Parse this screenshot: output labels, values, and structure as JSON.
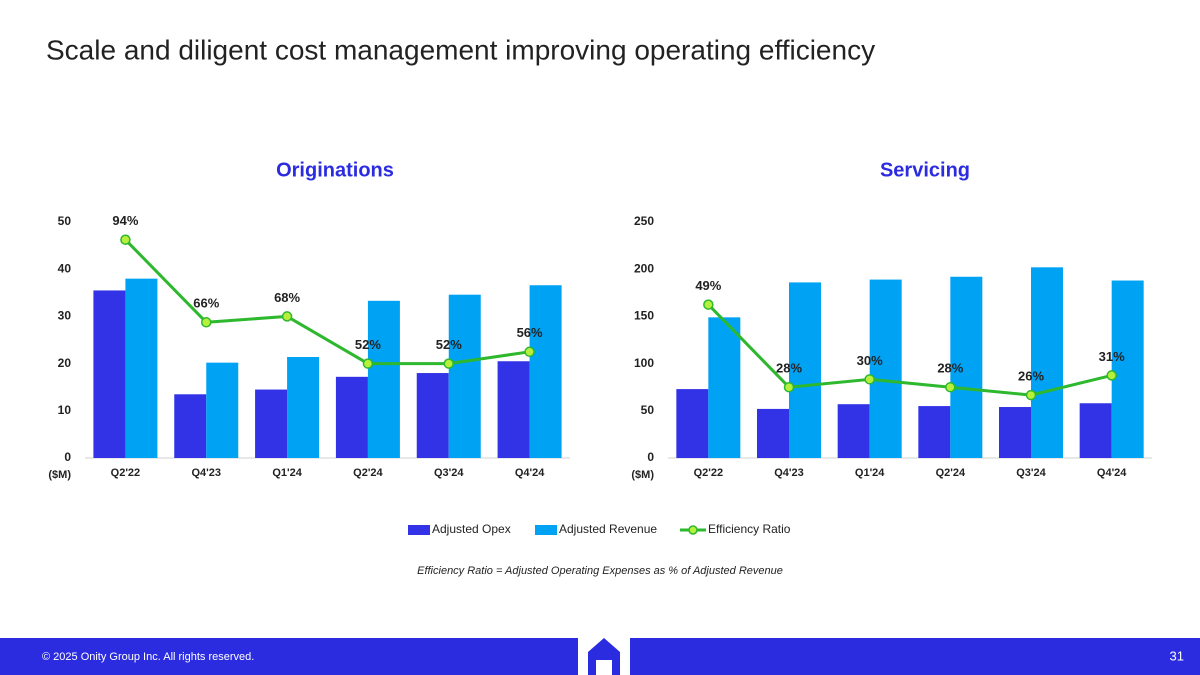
{
  "title": "Scale and diligent cost management improving operating efficiency",
  "footnote": "Efficiency Ratio = Adjusted Operating Expenses as % of Adjusted Revenue",
  "footer": {
    "copyright": "© 2025 Onity Group Inc. All rights reserved.",
    "page": "31"
  },
  "chart_data": [
    {
      "type": "bar",
      "title": "Originations",
      "ylabel": "($M)",
      "categories": [
        "Q2'22",
        "Q4'23",
        "Q1'24",
        "Q2'24",
        "Q3'24",
        "Q4'24"
      ],
      "ylim": [
        0,
        50
      ],
      "yticks": [
        0,
        10,
        20,
        30,
        40,
        50
      ],
      "y2lim": [
        20,
        100
      ],
      "series": [
        {
          "name": "Adjusted Opex",
          "color": "#3232e6",
          "values": [
            35.5,
            13.5,
            14.5,
            17.2,
            18,
            20.5
          ]
        },
        {
          "name": "Adjusted Revenue",
          "color": "#00a2f4",
          "values": [
            38,
            20.2,
            21.4,
            33.3,
            34.6,
            36.6
          ]
        },
        {
          "name": "Efficiency Ratio",
          "color": "#2eb82e",
          "type": "line",
          "axis": "y2",
          "values": [
            94,
            66,
            68,
            52,
            52,
            56
          ],
          "value_labels": [
            "94%",
            "66%",
            "68%",
            "52%",
            "52%",
            "56%"
          ]
        }
      ]
    },
    {
      "type": "bar",
      "title": "Servicing",
      "ylabel": "($M)",
      "categories": [
        "Q2'22",
        "Q4'23",
        "Q1'24",
        "Q2'24",
        "Q3'24",
        "Q4'24"
      ],
      "ylim": [
        0,
        250
      ],
      "yticks": [
        0,
        50,
        100,
        150,
        200,
        250
      ],
      "y2lim": [
        10,
        70
      ],
      "series": [
        {
          "color": "#3232e6",
          "values": [
            73,
            52,
            57,
            55,
            54,
            58
          ]
        },
        {
          "color": "#00a2f4",
          "values": [
            149,
            186,
            189,
            192,
            202,
            188
          ]
        },
        {
          "color": "#2eb82e",
          "type": "line",
          "axis": "y2",
          "values": [
            49,
            28,
            30,
            28,
            26,
            31
          ],
          "value_labels": [
            "49%",
            "28%",
            "30%",
            "28%",
            "26%",
            "31%"
          ]
        }
      ]
    }
  ]
}
